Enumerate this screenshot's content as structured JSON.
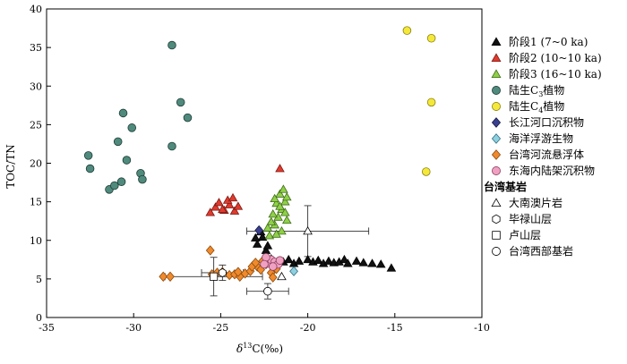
{
  "chart_data": {
    "type": "scatter",
    "xlabel": "δ13C(‰)",
    "ylabel": "TOC/TN",
    "xlim": [
      -35,
      -10
    ],
    "ylim": [
      0,
      40
    ],
    "xticks": [
      "-35",
      "-30",
      "-25",
      "-20",
      "-15",
      "-10"
    ],
    "yticks": [
      "0",
      "5",
      "10",
      "15",
      "20",
      "25",
      "30",
      "35",
      "40"
    ],
    "legend_position": "right",
    "legend_group_title": "台湾基岩",
    "series": [
      {
        "name": "阶段1 (7~0 ka)",
        "marker": "triangle",
        "fill": "#111111",
        "stroke": "#000000",
        "points": [
          [
            -22.1,
            7.6
          ],
          [
            -21.8,
            7.0
          ],
          [
            -21.4,
            7.2
          ],
          [
            -21.1,
            7.5
          ],
          [
            -20.8,
            7.0
          ],
          [
            -20.5,
            7.3
          ],
          [
            -20.0,
            7.5
          ],
          [
            -19.7,
            7.2
          ],
          [
            -19.4,
            7.4
          ],
          [
            -19.1,
            7.0
          ],
          [
            -18.8,
            7.3
          ],
          [
            -18.5,
            7.1
          ],
          [
            -18.2,
            7.2
          ],
          [
            -17.9,
            7.5
          ],
          [
            -17.7,
            7.0
          ],
          [
            -17.2,
            7.3
          ],
          [
            -16.8,
            7.1
          ],
          [
            -16.3,
            7.0
          ],
          [
            -15.8,
            6.9
          ],
          [
            -15.2,
            6.4
          ],
          [
            -22.9,
            9.5
          ],
          [
            -22.6,
            10.4
          ],
          [
            -22.4,
            8.7
          ],
          [
            -22.7,
            11.1
          ],
          [
            -23.0,
            10.3
          ],
          [
            -22.3,
            9.3
          ]
        ]
      },
      {
        "name": "阶段2 (10~10 ka)",
        "marker": "triangle",
        "fill": "#e03a2e",
        "stroke": "#7a1a14",
        "points": [
          [
            -25.6,
            13.6
          ],
          [
            -25.3,
            14.3
          ],
          [
            -25.1,
            14.9
          ],
          [
            -24.8,
            13.9
          ],
          [
            -24.5,
            14.6
          ],
          [
            -24.2,
            13.8
          ],
          [
            -24.0,
            14.4
          ],
          [
            -24.6,
            15.2
          ],
          [
            -24.3,
            15.5
          ],
          [
            -24.9,
            14.0
          ],
          [
            -21.6,
            19.3
          ]
        ]
      },
      {
        "name": "阶段3 (16~10 ka)",
        "marker": "triangle",
        "fill": "#8fd048",
        "stroke": "#3e6b17",
        "points": [
          [
            -22.2,
            10.6
          ],
          [
            -21.9,
            12.0
          ],
          [
            -21.7,
            13.0
          ],
          [
            -21.5,
            14.0
          ],
          [
            -21.3,
            15.0
          ],
          [
            -21.6,
            16.0
          ],
          [
            -21.4,
            16.6
          ],
          [
            -21.8,
            14.8
          ],
          [
            -22.0,
            13.4
          ],
          [
            -21.2,
            12.6
          ],
          [
            -21.5,
            11.2
          ],
          [
            -21.8,
            10.8
          ],
          [
            -21.3,
            13.6
          ],
          [
            -22.1,
            12.4
          ],
          [
            -21.6,
            14.4
          ],
          [
            -21.2,
            15.6
          ],
          [
            -21.9,
            15.4
          ],
          [
            -22.3,
            11.6
          ]
        ]
      },
      {
        "name": "陆生C3植物",
        "marker": "circle",
        "fill": "#4f8a7d",
        "stroke": "#1e3b34",
        "points": [
          [
            -27.8,
            35.3
          ],
          [
            -27.3,
            27.9
          ],
          [
            -26.9,
            25.9
          ],
          [
            -27.8,
            22.2
          ],
          [
            -30.6,
            26.5
          ],
          [
            -30.1,
            24.6
          ],
          [
            -30.9,
            22.8
          ],
          [
            -30.4,
            20.4
          ],
          [
            -29.6,
            18.7
          ],
          [
            -29.5,
            17.9
          ],
          [
            -32.6,
            21.0
          ],
          [
            -32.5,
            19.3
          ],
          [
            -31.4,
            16.6
          ],
          [
            -31.1,
            17.1
          ],
          [
            -30.7,
            17.6
          ]
        ]
      },
      {
        "name": "陆生C4植物",
        "marker": "circle",
        "fill": "#f4e83a",
        "stroke": "#8a7f10",
        "points": [
          [
            -14.3,
            37.2
          ],
          [
            -12.9,
            36.2
          ],
          [
            -12.9,
            27.9
          ],
          [
            -13.2,
            18.9
          ]
        ]
      },
      {
        "name": "长江河口沉积物",
        "marker": "diamond",
        "fill": "#3b3f8f",
        "stroke": "#15183f",
        "points": [
          [
            -22.8,
            11.3
          ]
        ]
      },
      {
        "name": "海洋浮游生物",
        "marker": "diamond",
        "fill": "#8fd0e0",
        "stroke": "#2f6f80",
        "points": [
          [
            -20.8,
            6.0
          ]
        ]
      },
      {
        "name": "台湾河流悬浮体",
        "marker": "diamond",
        "fill": "#f08a2c",
        "stroke": "#8a4a0e",
        "points": [
          [
            -28.3,
            5.3
          ],
          [
            -27.9,
            5.3
          ],
          [
            -25.6,
            8.7
          ],
          [
            -25.5,
            5.6
          ],
          [
            -25.2,
            5.8
          ],
          [
            -24.9,
            5.9
          ],
          [
            -24.5,
            5.5
          ],
          [
            -24.2,
            5.6
          ],
          [
            -23.9,
            5.3
          ],
          [
            -23.6,
            5.7
          ],
          [
            -23.3,
            6.0
          ],
          [
            -22.9,
            6.6
          ],
          [
            -22.7,
            6.2
          ],
          [
            -22.4,
            6.9
          ],
          [
            -22.1,
            5.8
          ],
          [
            -22.6,
            7.3
          ],
          [
            -22.0,
            5.2
          ],
          [
            -23.2,
            6.6
          ],
          [
            -24.0,
            5.9
          ],
          [
            -23.0,
            7.1
          ],
          [
            -21.8,
            6.3
          ]
        ]
      },
      {
        "name": "东海内陆架沉积物",
        "marker": "circle",
        "fill": "#f0a0c0",
        "stroke": "#8a3f60",
        "points": [
          [
            -22.3,
            7.0
          ],
          [
            -22.1,
            7.5
          ],
          [
            -21.9,
            7.2
          ],
          [
            -22.4,
            7.8
          ],
          [
            -21.7,
            6.9
          ],
          [
            -22.0,
            6.6
          ],
          [
            -22.5,
            6.9
          ],
          [
            -21.6,
            7.4
          ]
        ]
      },
      {
        "name": "大南澳片岩",
        "marker": "open-triangle",
        "fill": "none",
        "stroke": "#000000",
        "points": [
          [
            -20.0,
            11.2
          ],
          [
            -21.5,
            5.3
          ]
        ],
        "error_x": [
          3.5,
          0
        ],
        "error_y": [
          3.3,
          0
        ]
      },
      {
        "name": "毕禄山层",
        "marker": "open-hexagon",
        "fill": "none",
        "stroke": "#000000",
        "points": [
          [
            -24.9,
            5.8
          ]
        ],
        "error_x": [
          1.2
        ],
        "error_y": [
          1.0
        ]
      },
      {
        "name": "卢山层",
        "marker": "open-square",
        "fill": "none",
        "stroke": "#000000",
        "points": [
          [
            -25.4,
            5.3
          ]
        ],
        "error_x": [
          2.8
        ],
        "error_y": [
          2.5
        ]
      },
      {
        "name": "台湾西部基岩",
        "marker": "open-circle",
        "fill": "none",
        "stroke": "#000000",
        "points": [
          [
            -22.3,
            3.4
          ]
        ],
        "error_x": [
          1.2
        ],
        "error_y": [
          1.0
        ]
      }
    ]
  }
}
